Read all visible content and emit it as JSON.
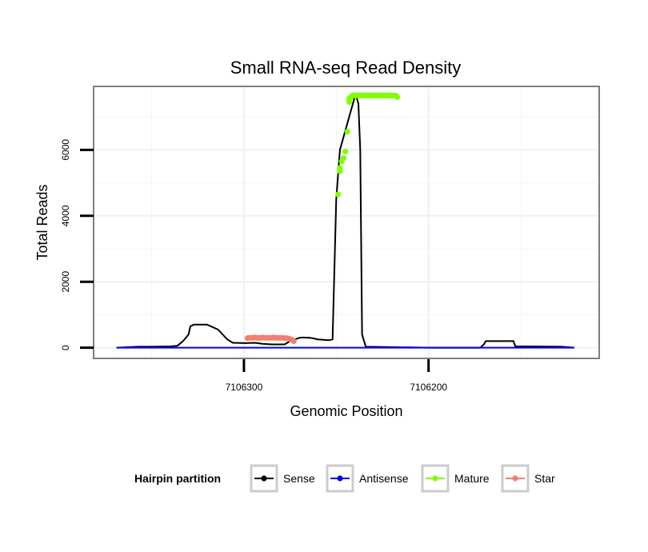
{
  "chart_data": {
    "type": "line",
    "title": "Small RNA-seq Read Density",
    "xlabel": "Genomic Position",
    "ylabel": "Total Reads",
    "x_reversed": true,
    "xlim": [
      7106381,
      7106108
    ],
    "ylim": [
      -300,
      7900
    ],
    "x_ticks": [
      7106300,
      7106200
    ],
    "y_ticks": [
      0,
      2000,
      4000,
      6000
    ],
    "x_tick_labels": [
      "7106300",
      "7106200"
    ],
    "y_tick_labels": [
      "0",
      "2000",
      "4000",
      "6000"
    ],
    "grid": true,
    "legend": {
      "title": "Hairpin partition",
      "position": "bottom",
      "entries": [
        {
          "name": "Sense",
          "color": "#000000"
        },
        {
          "name": "Antisense",
          "color": "#0000ff"
        },
        {
          "name": "Mature",
          "color": "#7fff00"
        },
        {
          "name": "Star",
          "color": "#f08070"
        }
      ]
    },
    "series": [
      {
        "name": "Sense",
        "color": "#000000",
        "style": "line",
        "x": [
          7106369,
          7106357,
          7106350,
          7106340,
          7106336,
          7106333,
          7106330,
          7106329,
          7106327,
          7106320,
          7106318,
          7106316,
          7106314,
          7106309,
          7106306,
          7106299,
          7106294,
          7106290,
          7106285,
          7106278,
          7106275,
          7106271,
          7106270,
          7106268,
          7106264,
          7106262,
          7106260,
          7106254,
          7106252,
          7106250,
          7106248,
          7106240,
          7106239,
          7106238,
          7106237,
          7106236,
          7106234,
          7106200,
          7106190,
          7106180,
          7106172,
          7106170,
          7106169,
          7106160,
          7106154,
          7106153,
          7106148,
          7106128,
          7106121
        ],
        "values": [
          0,
          30,
          30,
          40,
          60,
          200,
          400,
          650,
          700,
          700,
          650,
          600,
          550,
          250,
          150,
          140,
          150,
          120,
          100,
          100,
          200,
          280,
          300,
          310,
          300,
          280,
          250,
          230,
          250,
          4500,
          6000,
          7600,
          7600,
          7400,
          6000,
          400,
          30,
          0,
          0,
          0,
          0,
          100,
          200,
          200,
          200,
          40,
          40,
          30,
          0
        ]
      },
      {
        "name": "Antisense",
        "color": "#0000ff",
        "style": "line",
        "x": [
          7106369,
          7106121
        ],
        "values": [
          0,
          0
        ]
      },
      {
        "name": "Mature",
        "color": "#7fff00",
        "style": "points",
        "x": [
          7106249,
          7106248,
          7106248,
          7106247,
          7106246,
          7106245,
          7106244,
          7106243,
          7106243,
          7106242,
          7106241,
          7106240,
          7106239,
          7106238,
          7106237,
          7106236,
          7106235,
          7106234,
          7106233,
          7106232,
          7106231,
          7106230,
          7106229,
          7106228,
          7106227,
          7106226,
          7106225,
          7106224,
          7106223,
          7106222,
          7106221,
          7106220,
          7106219,
          7106218,
          7106217
        ],
        "values": [
          4650,
          5350,
          5450,
          5650,
          5750,
          5950,
          6550,
          7450,
          7550,
          7600,
          7650,
          7650,
          7650,
          7650,
          7650,
          7650,
          7650,
          7650,
          7650,
          7650,
          7650,
          7650,
          7650,
          7650,
          7650,
          7650,
          7650,
          7650,
          7650,
          7650,
          7650,
          7650,
          7650,
          7650,
          7600
        ]
      },
      {
        "name": "Star",
        "color": "#f08070",
        "style": "points",
        "x": [
          7106298,
          7106297,
          7106296,
          7106295,
          7106294,
          7106293,
          7106292,
          7106291,
          7106290,
          7106289,
          7106288,
          7106287,
          7106286,
          7106285,
          7106284,
          7106283,
          7106282,
          7106281,
          7106280,
          7106279,
          7106278,
          7106277,
          7106276,
          7106275,
          7106274,
          7106273
        ],
        "values": [
          290,
          300,
          300,
          300,
          310,
          300,
          300,
          300,
          310,
          300,
          300,
          300,
          300,
          300,
          310,
          300,
          300,
          300,
          300,
          300,
          290,
          290,
          280,
          260,
          240,
          200
        ]
      }
    ]
  }
}
